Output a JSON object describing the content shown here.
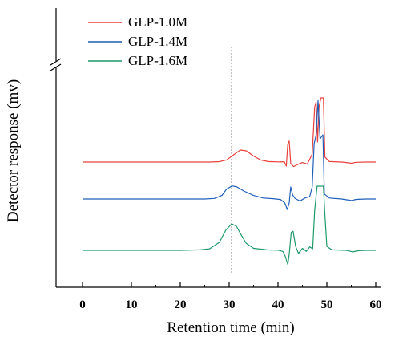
{
  "chart_data": {
    "type": "line",
    "title": "",
    "xlabel": "Retention time (min)",
    "ylabel": "Detector response (mv)",
    "xlim": [
      -5,
      62
    ],
    "xticks": [
      0,
      10,
      20,
      30,
      40,
      50,
      60
    ],
    "y_axis_break": true,
    "grid": false,
    "legend_position": "top-left",
    "reference_line": {
      "x": 30.5,
      "style": "dotted"
    },
    "series": [
      {
        "name": "GLP-1.0M",
        "color": "#e8413c",
        "baseline": 0,
        "points": [
          [
            0,
            0
          ],
          [
            26,
            0
          ],
          [
            28,
            0.4
          ],
          [
            29.5,
            2.2
          ],
          [
            31,
            7.5
          ],
          [
            32.3,
            12.0
          ],
          [
            33.5,
            11.2
          ],
          [
            35,
            6.0
          ],
          [
            36.5,
            2.0
          ],
          [
            38,
            0.5
          ],
          [
            40,
            0.2
          ],
          [
            41.3,
            0.3
          ],
          [
            41.7,
            -4.0
          ],
          [
            42.0,
            18.0
          ],
          [
            42.3,
            21.0
          ],
          [
            42.6,
            -1.5
          ],
          [
            43.2,
            -4.5
          ],
          [
            44,
            -2.5
          ],
          [
            45,
            -0.5
          ],
          [
            46,
            -2.0
          ],
          [
            47,
            8.0
          ],
          [
            47.5,
            55.0
          ],
          [
            47.8,
            60.0
          ],
          [
            48.1,
            20.0
          ],
          [
            48.4,
            55.0
          ],
          [
            48.8,
            64.0
          ],
          [
            49.3,
            64.0
          ],
          [
            49.6,
            5.0
          ],
          [
            50.5,
            0.5
          ],
          [
            53,
            0
          ],
          [
            54.5,
            -0.8
          ],
          [
            55,
            -1.2
          ],
          [
            56,
            -0.2
          ],
          [
            58,
            0
          ],
          [
            60,
            0
          ]
        ]
      },
      {
        "name": "GLP-1.4M",
        "color": "#1f5fb8",
        "baseline": 0,
        "points": [
          [
            0,
            0
          ],
          [
            25,
            0
          ],
          [
            27,
            0.6
          ],
          [
            28.5,
            3.5
          ],
          [
            29.5,
            10.0
          ],
          [
            30.6,
            13.0
          ],
          [
            31.5,
            12.3
          ],
          [
            33,
            8.0
          ],
          [
            35,
            3.5
          ],
          [
            37,
            1.0
          ],
          [
            39,
            0.3
          ],
          [
            40.5,
            -0.5
          ],
          [
            41.4,
            -4.0
          ],
          [
            41.9,
            -10.5
          ],
          [
            42.3,
            -4.0
          ],
          [
            42.6,
            12.0
          ],
          [
            43.0,
            4.0
          ],
          [
            43.5,
            0.5
          ],
          [
            44.5,
            -2.0
          ],
          [
            45.5,
            1.0
          ],
          [
            46.5,
            2.5
          ],
          [
            47.0,
            12.0
          ],
          [
            47.4,
            55.0
          ],
          [
            47.8,
            64.0
          ],
          [
            48.2,
            98.0
          ],
          [
            48.6,
            60.0
          ],
          [
            49.2,
            64.0
          ],
          [
            49.5,
            5.0
          ],
          [
            50.5,
            1.0
          ],
          [
            53,
            0
          ],
          [
            55,
            -1.5
          ],
          [
            56,
            -0.4
          ],
          [
            58,
            0
          ],
          [
            60,
            0
          ]
        ]
      },
      {
        "name": "GLP-1.6M",
        "color": "#1e9a6a",
        "baseline": 0,
        "points": [
          [
            0,
            0
          ],
          [
            20,
            0
          ],
          [
            24,
            0.5
          ],
          [
            26,
            1.5
          ],
          [
            28,
            8.0
          ],
          [
            29.3,
            20.0
          ],
          [
            30.5,
            26.5
          ],
          [
            31.5,
            24.0
          ],
          [
            32.5,
            15.0
          ],
          [
            33.5,
            7.0
          ],
          [
            35,
            2.0
          ],
          [
            38,
            0.4
          ],
          [
            40,
            0.2
          ],
          [
            41.0,
            -1.0
          ],
          [
            41.5,
            -6.0
          ],
          [
            42.0,
            -14.0
          ],
          [
            42.3,
            -4.0
          ],
          [
            42.7,
            18.0
          ],
          [
            43.1,
            19.0
          ],
          [
            43.6,
            4.0
          ],
          [
            44.2,
            -3.0
          ],
          [
            45,
            2.0
          ],
          [
            45.8,
            -1.0
          ],
          [
            46.5,
            3.5
          ],
          [
            47.1,
            1.5
          ],
          [
            47.5,
            40.0
          ],
          [
            48.0,
            64.0
          ],
          [
            49.3,
            64.0
          ],
          [
            49.6,
            35.0
          ],
          [
            50.0,
            4.0
          ],
          [
            51,
            0.5
          ],
          [
            54,
            0
          ],
          [
            55.3,
            -1.5
          ],
          [
            56.5,
            -0.3
          ],
          [
            58,
            0
          ],
          [
            60,
            0
          ]
        ]
      }
    ]
  }
}
